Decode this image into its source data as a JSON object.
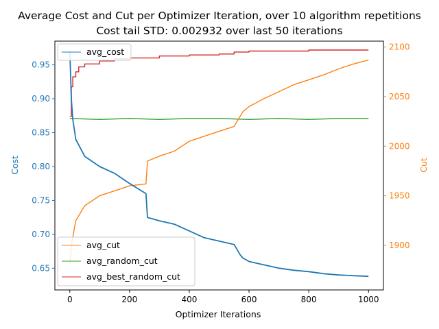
{
  "chart_data": {
    "type": "line",
    "title": "Average Cost and Cut per Optimizer Iteration, over 10 algorithm repetitions",
    "subtitle": "Cost tail STD: 0.002932 over last 50 iterations",
    "xlabel": "Optimizer Iterations",
    "ylabel_left": "Cost",
    "ylabel_right": "Cut",
    "xlim": [
      -50,
      1050
    ],
    "ylim_left": [
      0.618,
      0.985
    ],
    "ylim_right": [
      1855,
      2106
    ],
    "x_ticks": [
      0,
      200,
      400,
      600,
      800,
      1000
    ],
    "y_ticks_left": [
      0.65,
      0.7,
      0.75,
      0.8,
      0.85,
      0.9,
      0.95
    ],
    "y_ticks_right": [
      1900,
      1950,
      2000,
      2050,
      2100
    ],
    "grid": false,
    "legend_left": {
      "placement": "upper-left",
      "entries": [
        "avg_cost"
      ]
    },
    "legend_right": {
      "placement": "lower-left",
      "entries": [
        "avg_cut",
        "avg_random_cut",
        "avg_best_random_cut"
      ]
    },
    "colors": {
      "avg_cost": "#1f77b4",
      "avg_cut": "#ff7f0e",
      "avg_random_cut": "#2ca02c",
      "avg_best_random_cut": "#d62728",
      "cost_axis": "#1f77b4",
      "cut_axis": "#ff7f0e"
    },
    "series": [
      {
        "name": "avg_cost",
        "axis": "left",
        "x": [
          0,
          5,
          10,
          20,
          50,
          100,
          150,
          200,
          255,
          260,
          300,
          350,
          400,
          450,
          500,
          550,
          570,
          580,
          600,
          650,
          700,
          750,
          800,
          850,
          900,
          950,
          1000
        ],
        "y": [
          0.97,
          0.9,
          0.87,
          0.84,
          0.815,
          0.8,
          0.79,
          0.775,
          0.76,
          0.725,
          0.72,
          0.715,
          0.705,
          0.695,
          0.69,
          0.685,
          0.67,
          0.665,
          0.66,
          0.655,
          0.65,
          0.647,
          0.645,
          0.642,
          0.64,
          0.639,
          0.638
        ]
      },
      {
        "name": "avg_cut",
        "axis": "right",
        "x": [
          0,
          5,
          20,
          50,
          100,
          150,
          200,
          255,
          260,
          300,
          350,
          400,
          450,
          500,
          550,
          580,
          600,
          650,
          700,
          750,
          800,
          850,
          900,
          950,
          1000
        ],
        "y": [
          1880,
          1900,
          1925,
          1940,
          1950,
          1955,
          1960,
          1962,
          1985,
          1990,
          1995,
          2005,
          2010,
          2015,
          2020,
          2035,
          2040,
          2048,
          2055,
          2062,
          2067,
          2072,
          2078,
          2083,
          2087
        ]
      },
      {
        "name": "avg_random_cut",
        "axis": "right",
        "x": [
          0,
          100,
          200,
          300,
          400,
          500,
          600,
          700,
          800,
          900,
          1000
        ],
        "y": [
          2028,
          2027,
          2028,
          2027,
          2028,
          2028,
          2027,
          2028,
          2027,
          2028,
          2028
        ]
      },
      {
        "name": "avg_best_random_cut",
        "axis": "right",
        "x": [
          0,
          5,
          10,
          20,
          30,
          50,
          100,
          150,
          200,
          300,
          400,
          500,
          550,
          600,
          700,
          800,
          900,
          1000
        ],
        "y": [
          2030,
          2060,
          2070,
          2075,
          2080,
          2083,
          2086,
          2088,
          2089,
          2091,
          2092,
          2093,
          2095,
          2096,
          2096,
          2097,
          2097,
          2097
        ]
      }
    ]
  }
}
